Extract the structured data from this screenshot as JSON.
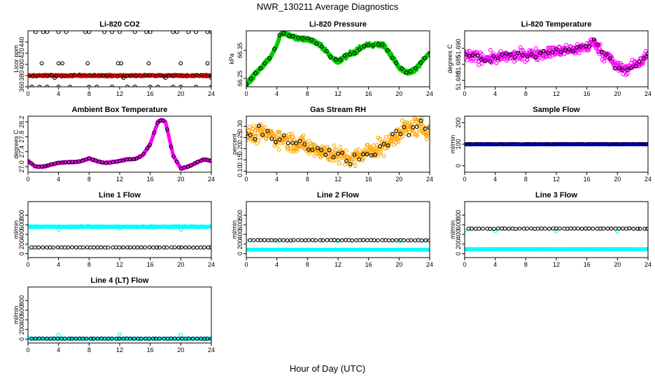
{
  "figure": {
    "title": "NWR_130211  Average Diagnostics",
    "xlabel": "Hour of Day (UTC)"
  },
  "colors": {
    "black_points": "#000000",
    "red": "#ff0000",
    "green": "#00cc00",
    "magenta": "#ff00ff",
    "orange": "#ffa500",
    "blue": "#0000ff",
    "cyan": "#00ffff"
  },
  "chart_data": [
    {
      "type": "scatter",
      "title": "Li-820 CO2",
      "ylabel": "Licor ppm",
      "xlim": [
        0,
        24
      ],
      "ylim": [
        360,
        460
      ],
      "xticks": [
        0,
        4,
        8,
        12,
        16,
        20,
        24
      ],
      "yticks": [
        360,
        380,
        400,
        420,
        440
      ],
      "series": [
        {
          "color": "red",
          "marker": "dense",
          "x_range": [
            0,
            24
          ],
          "y": 380,
          "noise": 1.5
        },
        {
          "color": "black_points",
          "marker": "ring",
          "x_range": [
            0,
            24
          ],
          "y": 380,
          "noise": 1.5,
          "n": 40
        },
        {
          "color": "black_points",
          "marker": "ring",
          "points": [
            [
              1,
              458
            ],
            [
              2,
              458
            ],
            [
              2.5,
              458
            ],
            [
              4,
              458
            ],
            [
              5,
              458
            ],
            [
              7.5,
              458
            ],
            [
              8,
              458
            ],
            [
              10,
              458
            ],
            [
              11,
              458
            ],
            [
              12,
              458
            ],
            [
              14,
              458
            ],
            [
              15.5,
              458
            ],
            [
              16,
              458
            ],
            [
              19,
              458
            ],
            [
              19.5,
              458
            ],
            [
              21,
              458
            ],
            [
              22,
              458
            ],
            [
              23.5,
              458
            ],
            [
              24,
              458
            ],
            [
              1.8,
              402
            ],
            [
              4,
              402
            ],
            [
              4.5,
              402
            ],
            [
              7.8,
              402
            ],
            [
              11.8,
              402
            ],
            [
              12.2,
              402
            ],
            [
              15.8,
              402
            ],
            [
              20,
              402
            ],
            [
              23.5,
              402
            ],
            [
              0.5,
              360
            ],
            [
              1.5,
              360
            ],
            [
              2.5,
              360
            ],
            [
              4,
              360
            ],
            [
              5.5,
              360
            ],
            [
              8,
              360
            ],
            [
              9,
              360
            ],
            [
              11,
              360
            ],
            [
              13,
              360
            ],
            [
              14,
              360
            ],
            [
              16,
              360
            ],
            [
              17,
              360
            ],
            [
              19,
              360
            ],
            [
              20,
              360
            ],
            [
              22,
              360
            ],
            [
              24,
              360
            ],
            [
              3.5,
              376
            ],
            [
              12.5,
              376
            ],
            [
              18,
              376
            ],
            [
              24,
              376
            ]
          ]
        }
      ]
    },
    {
      "type": "scatter",
      "title": "Li-820 Pressure",
      "ylabel": "kPa",
      "xlim": [
        0,
        24
      ],
      "ylim": [
        66.22,
        66.42
      ],
      "xticks": [
        0,
        4,
        8,
        12,
        16,
        20,
        24
      ],
      "yticks": [
        66.25,
        66.35
      ],
      "ytick_labels": [
        "66.25",
        "66.35"
      ],
      "series": [
        {
          "color": "green",
          "marker": "dense",
          "x": [
            0,
            1,
            2,
            3,
            4,
            4.5,
            5,
            6,
            7,
            8,
            9,
            10,
            11,
            12,
            13,
            14,
            15,
            16,
            17,
            18,
            19,
            20,
            21,
            22,
            23,
            24
          ],
          "y": [
            66.23,
            66.26,
            66.29,
            66.32,
            66.37,
            66.41,
            66.41,
            66.4,
            66.39,
            66.39,
            66.38,
            66.36,
            66.33,
            66.31,
            66.33,
            66.34,
            66.36,
            66.37,
            66.37,
            66.37,
            66.33,
            66.29,
            66.27,
            66.28,
            66.31,
            66.34
          ],
          "noise": 0.008
        },
        {
          "color": "black_points",
          "marker": "ring",
          "x": [
            0,
            1,
            2,
            3,
            4,
            4.5,
            5,
            6,
            7,
            8,
            9,
            10,
            11,
            12,
            13,
            14,
            15,
            16,
            17,
            18,
            19,
            20,
            21,
            22,
            23,
            24
          ],
          "y": [
            66.23,
            66.26,
            66.29,
            66.32,
            66.37,
            66.41,
            66.41,
            66.4,
            66.39,
            66.39,
            66.38,
            66.36,
            66.33,
            66.31,
            66.33,
            66.34,
            66.36,
            66.37,
            66.37,
            66.37,
            66.33,
            66.29,
            66.27,
            66.28,
            66.31,
            66.34
          ],
          "noise": 0.005,
          "n": 40
        }
      ]
    },
    {
      "type": "scatter",
      "title": "Li-820 Temperature",
      "ylabel": "degrees C",
      "xlim": [
        0,
        24
      ],
      "ylim": [
        51.678,
        51.6955
      ],
      "xticks": [
        0,
        4,
        8,
        12,
        16,
        20,
        24
      ],
      "yticks": [
        51.68,
        51.685,
        51.69
      ],
      "ytick_labels": [
        "51.680",
        "51.685",
        "51.690"
      ],
      "series": [
        {
          "color": "magenta",
          "marker": "ring",
          "x": [
            0,
            2,
            4,
            6,
            8,
            10,
            12,
            14,
            16,
            17,
            18,
            19,
            20,
            21,
            22,
            23,
            24
          ],
          "y": [
            51.688,
            51.687,
            51.687,
            51.6875,
            51.688,
            51.6885,
            51.689,
            51.6895,
            51.6905,
            51.692,
            51.6885,
            51.687,
            51.684,
            51.6835,
            51.6845,
            51.686,
            51.688
          ],
          "noise": 0.0018,
          "n": 420
        },
        {
          "color": "black_points",
          "marker": "ring",
          "x": [
            0,
            2,
            4,
            6,
            8,
            10,
            12,
            14,
            16,
            17,
            18,
            19,
            20,
            21,
            22,
            23,
            24
          ],
          "y": [
            51.688,
            51.687,
            51.687,
            51.6875,
            51.688,
            51.6885,
            51.689,
            51.6895,
            51.6905,
            51.692,
            51.6885,
            51.687,
            51.684,
            51.6835,
            51.6845,
            51.686,
            51.688
          ],
          "noise": 0.0012,
          "n": 45
        }
      ]
    },
    {
      "type": "scatter",
      "title": "Ambient Box Temperature",
      "ylabel": "degrees C",
      "xlim": [
        0,
        24
      ],
      "ylim": [
        26.85,
        28.35
      ],
      "xticks": [
        0,
        4,
        8,
        12,
        16,
        20,
        24
      ],
      "yticks": [
        27.0,
        27.4,
        27.8,
        28.2
      ],
      "ytick_labels": [
        "27.0",
        "27.4",
        "27.8",
        "28.2"
      ],
      "series": [
        {
          "color": "magenta",
          "marker": "dense",
          "x": [
            0,
            1,
            2,
            3,
            4,
            5,
            6,
            7,
            8,
            9,
            10,
            11,
            12,
            13,
            14,
            15,
            16,
            17,
            17.5,
            18,
            19,
            20,
            21,
            22,
            23,
            24
          ],
          "y": [
            27.15,
            27.0,
            27.0,
            27.05,
            27.1,
            27.12,
            27.12,
            27.15,
            27.22,
            27.15,
            27.1,
            27.12,
            27.15,
            27.2,
            27.2,
            27.3,
            27.6,
            28.2,
            28.25,
            28.2,
            27.3,
            26.95,
            27.0,
            27.1,
            27.2,
            27.15
          ],
          "noise": 0.015
        },
        {
          "color": "black_points",
          "marker": "ring",
          "x": [
            0,
            1,
            2,
            3,
            4,
            5,
            6,
            7,
            8,
            9,
            10,
            11,
            12,
            13,
            14,
            15,
            16,
            17,
            17.5,
            18,
            19,
            20,
            21,
            22,
            23,
            24
          ],
          "y": [
            27.15,
            27.0,
            27.0,
            27.05,
            27.1,
            27.12,
            27.12,
            27.15,
            27.22,
            27.15,
            27.1,
            27.12,
            27.15,
            27.2,
            27.2,
            27.3,
            27.6,
            28.2,
            28.25,
            28.2,
            27.3,
            26.95,
            27.0,
            27.1,
            27.2,
            27.15
          ],
          "noise": 0.01,
          "n": 55
        }
      ]
    },
    {
      "type": "scatter",
      "title": "Gas Stream RH",
      "ylabel": "percent",
      "xlim": [
        0,
        24
      ],
      "ylim": [
        0.095,
        0.345
      ],
      "xticks": [
        0,
        4,
        8,
        12,
        16,
        20,
        24
      ],
      "yticks": [
        0.1,
        0.15,
        0.2,
        0.25,
        0.3
      ],
      "ytick_labels": [
        "0.10",
        "0.15",
        "0.20",
        "0.25",
        "0.30"
      ],
      "series": [
        {
          "color": "orange",
          "marker": "ring",
          "x": [
            0,
            2,
            4,
            6,
            8,
            10,
            12,
            13,
            14,
            16,
            18,
            20,
            21,
            22,
            23,
            24
          ],
          "y": [
            0.26,
            0.27,
            0.25,
            0.23,
            0.21,
            0.19,
            0.17,
            0.16,
            0.15,
            0.19,
            0.21,
            0.27,
            0.29,
            0.3,
            0.29,
            0.28
          ],
          "noise": 0.04,
          "n": 380
        },
        {
          "color": "black_points",
          "marker": "ring",
          "x": [
            0,
            2,
            4,
            6,
            8,
            10,
            12,
            13,
            14,
            16,
            18,
            20,
            21,
            22,
            23,
            24
          ],
          "y": [
            0.26,
            0.27,
            0.25,
            0.23,
            0.21,
            0.19,
            0.17,
            0.16,
            0.15,
            0.19,
            0.21,
            0.27,
            0.29,
            0.3,
            0.29,
            0.28
          ],
          "noise": 0.035,
          "n": 45
        }
      ]
    },
    {
      "type": "scatter",
      "title": "Sample Flow",
      "ylabel": "ml/min",
      "xlim": [
        0,
        24
      ],
      "ylim": [
        -30,
        230
      ],
      "xticks": [
        0,
        4,
        8,
        12,
        16,
        20,
        24
      ],
      "yticks": [
        0,
        100,
        200
      ],
      "series": [
        {
          "color": "blue",
          "marker": "dense",
          "x_range": [
            0,
            24
          ],
          "y": 100,
          "noise": 1.2
        },
        {
          "color": "black_points",
          "marker": "ring",
          "x_range": [
            0,
            24
          ],
          "y": 100,
          "noise": 0.5,
          "n": 55
        }
      ]
    },
    {
      "type": "scatter",
      "title": "Line 1 Flow",
      "ylabel": "ml/min",
      "xlim": [
        0,
        24
      ],
      "ylim": [
        -80,
        1080
      ],
      "xticks": [
        0,
        4,
        8,
        12,
        16,
        20,
        24
      ],
      "yticks": [
        0,
        200,
        400,
        600,
        800
      ],
      "series": [
        {
          "color": "cyan",
          "marker": "dense",
          "x_range": [
            0,
            24
          ],
          "y": 560,
          "noise": 12
        },
        {
          "color": "cyan",
          "marker": "ring",
          "points": [
            [
              0,
              100
            ],
            [
              4,
              500
            ],
            [
              12,
              520
            ],
            [
              20,
              500
            ]
          ]
        },
        {
          "color": "black_points",
          "marker": "ring",
          "x_range": [
            0.5,
            24
          ],
          "y": 130,
          "noise": 3,
          "n": 50
        }
      ]
    },
    {
      "type": "scatter",
      "title": "Line 2 Flow",
      "ylabel": "ml/min",
      "xlim": [
        0,
        24
      ],
      "ylim": [
        -80,
        1080
      ],
      "xticks": [
        0,
        4,
        8,
        12,
        16,
        20,
        24
      ],
      "yticks": [
        0,
        200,
        400,
        600,
        800
      ],
      "series": [
        {
          "color": "cyan",
          "marker": "dense",
          "x_range": [
            0,
            24
          ],
          "y": 85,
          "noise": 3
        },
        {
          "color": "cyan",
          "marker": "ring",
          "points": [
            [
              0,
              270
            ],
            [
              4,
              270
            ],
            [
              12,
              260
            ],
            [
              20,
              260
            ],
            [
              23.5,
              280
            ]
          ]
        },
        {
          "color": "black_points",
          "marker": "ring",
          "x_range": [
            0.5,
            24
          ],
          "y": 280,
          "noise": 4,
          "n": 50
        }
      ]
    },
    {
      "type": "scatter",
      "title": "Line 3 Flow",
      "ylabel": "ml/min",
      "xlim": [
        0,
        24
      ],
      "ylim": [
        -80,
        1080
      ],
      "xticks": [
        0,
        4,
        8,
        12,
        16,
        20,
        24
      ],
      "yticks": [
        0,
        200,
        400,
        600,
        800
      ],
      "series": [
        {
          "color": "cyan",
          "marker": "dense",
          "x_range": [
            0,
            24
          ],
          "y": 95,
          "noise": 3
        },
        {
          "color": "cyan",
          "marker": "ring",
          "points": [
            [
              0,
              480
            ],
            [
              4,
              470
            ],
            [
              12,
              470
            ],
            [
              20,
              460
            ]
          ]
        },
        {
          "color": "black_points",
          "marker": "ring",
          "x_range": [
            0.5,
            24
          ],
          "y": 520,
          "noise": 5,
          "n": 50
        }
      ]
    },
    {
      "type": "scatter",
      "title": "Line 4 (LT) Flow",
      "ylabel": "ml/min",
      "xlim": [
        0,
        24
      ],
      "ylim": [
        -80,
        1080
      ],
      "xticks": [
        0,
        4,
        8,
        12,
        16,
        20,
        24
      ],
      "yticks": [
        0,
        200,
        400,
        600,
        800
      ],
      "series": [
        {
          "color": "cyan",
          "marker": "dense",
          "x_range": [
            0,
            24
          ],
          "y": 10,
          "noise": 2
        },
        {
          "color": "cyan",
          "marker": "ring",
          "points": [
            [
              0,
              15
            ],
            [
              4,
              90
            ],
            [
              12,
              100
            ],
            [
              20,
              90
            ]
          ]
        },
        {
          "color": "black_points",
          "marker": "ring",
          "x_range": [
            0.5,
            24
          ],
          "y": 10,
          "noise": 2,
          "n": 50
        }
      ]
    }
  ]
}
